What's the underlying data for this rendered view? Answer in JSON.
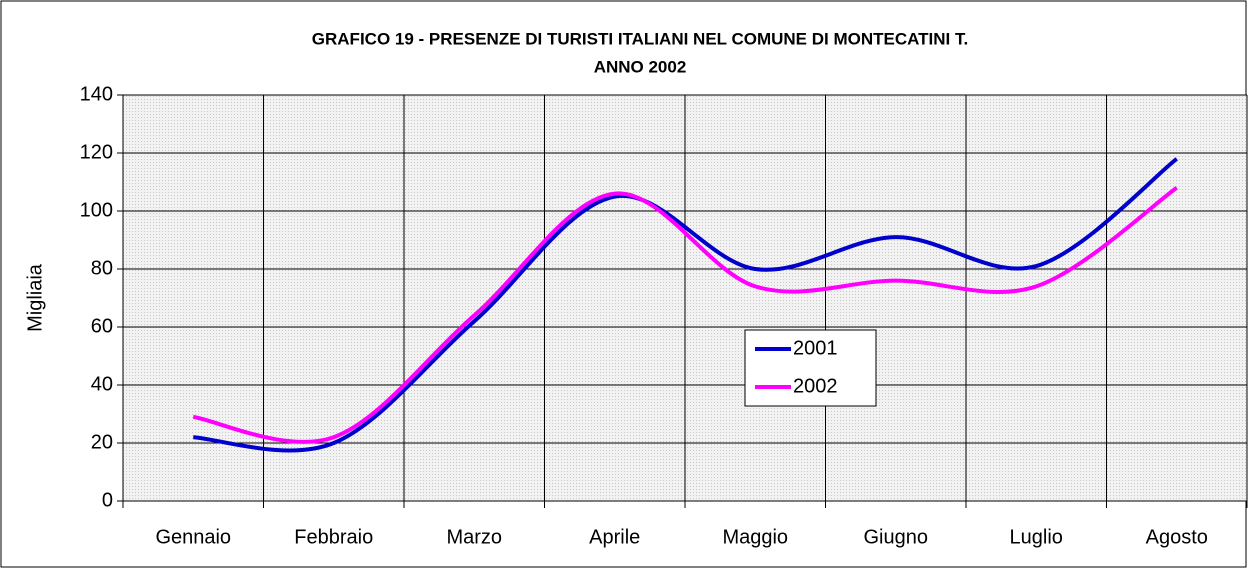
{
  "chart_data": {
    "type": "line",
    "title": "GRAFICO 19 - PRESENZE DI TURISTI ITALIANI NEL COMUNE DI MONTECATINI T.",
    "subtitle": "ANNO 2002",
    "y_label": "Migliaia",
    "categories": [
      "Gennaio",
      "Febbraio",
      "Marzo",
      "Aprile",
      "Maggio",
      "Giugno",
      "Luglio",
      "Agosto"
    ],
    "series": [
      {
        "name": "2001",
        "color": "#0000cc",
        "values": [
          22,
          20,
          62,
          105,
          80,
          91,
          81,
          118
        ]
      },
      {
        "name": "2002",
        "color": "#ff00ff",
        "values": [
          29,
          22,
          64,
          106,
          74,
          76,
          74,
          108
        ]
      }
    ],
    "ylim": [
      0,
      140
    ],
    "yticks": [
      0,
      20,
      40,
      60,
      80,
      100,
      120,
      140
    ],
    "grid": true,
    "smooth": true,
    "legend": "center"
  }
}
